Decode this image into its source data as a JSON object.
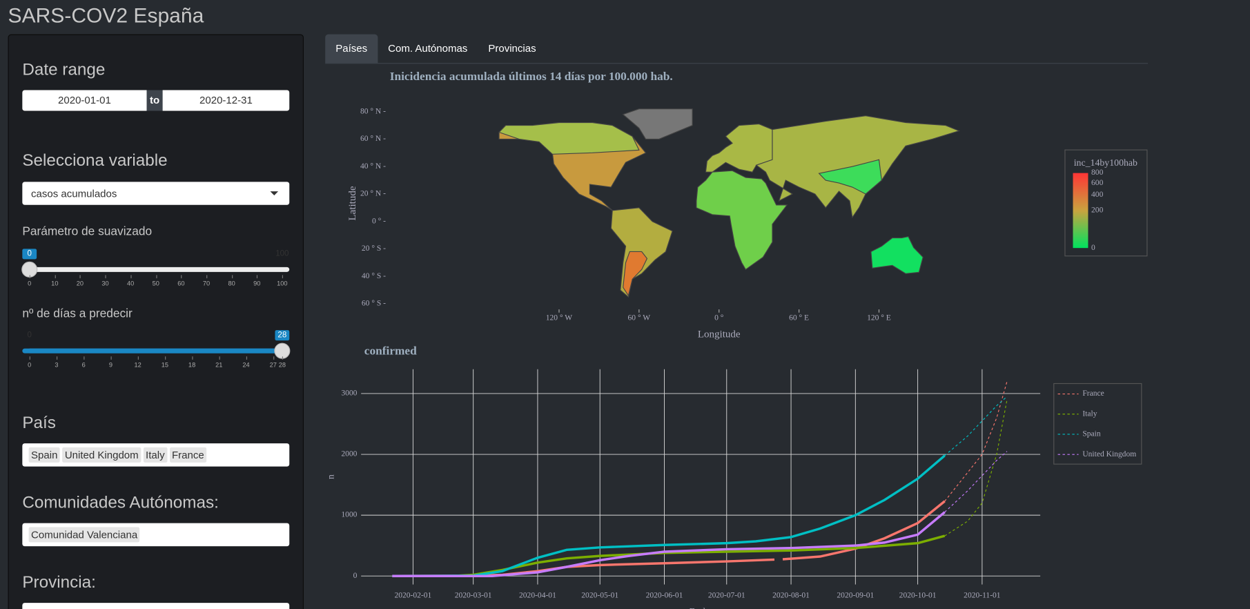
{
  "header": {
    "title": "SARS-COV2 España"
  },
  "sidebar": {
    "date_range": {
      "label": "Date range",
      "start": "2020-01-01",
      "separator": "to",
      "end": "2020-12-31"
    },
    "variable": {
      "label": "Selecciona variable",
      "value": "casos acumulados"
    },
    "smoothing": {
      "label": "Parámetro de suavizado",
      "min": 0,
      "max": 100,
      "value": 0,
      "ticks": [
        0,
        10,
        20,
        30,
        40,
        50,
        60,
        70,
        80,
        90,
        100
      ]
    },
    "predict": {
      "label": "nº de días a predecir",
      "min": 0,
      "max": 28,
      "value": 28,
      "ticks": [
        0,
        3,
        6,
        9,
        12,
        15,
        18,
        21,
        24,
        27,
        28
      ]
    },
    "country": {
      "label": "País",
      "tags": [
        "Spain",
        "United Kingdom",
        "Italy",
        "France"
      ]
    },
    "region": {
      "label": "Comunidades Autónomas:",
      "tags": [
        "Comunidad Valenciana"
      ]
    },
    "province": {
      "label": "Provincia:"
    }
  },
  "tabs": {
    "items": [
      "Países",
      "Com. Autónomas",
      "Provincias"
    ],
    "active": 0
  },
  "chart_data": [
    {
      "type": "choropleth",
      "title": "Inicidencia acumulada últimos 14 días por 100.000 hab.",
      "x_label": "Longitude",
      "y_label": "Latitude",
      "xlim": [
        -180,
        180
      ],
      "ylim": [
        -60,
        85
      ],
      "xticks": [
        {
          "value": -120,
          "label": "120 ° W"
        },
        {
          "value": -60,
          "label": "60 ° W"
        },
        {
          "value": 0,
          "label": "0 °"
        },
        {
          "value": 60,
          "label": "60 ° E"
        },
        {
          "value": 120,
          "label": "120 ° E"
        }
      ],
      "yticks": [
        {
          "value": 80,
          "label": "80 ° N -"
        },
        {
          "value": 60,
          "label": "60 ° N -"
        },
        {
          "value": 40,
          "label": "40 ° N -"
        },
        {
          "value": 20,
          "label": "20 ° N -"
        },
        {
          "value": 0,
          "label": "0 ° -"
        },
        {
          "value": -20,
          "label": "20 ° S -"
        },
        {
          "value": -40,
          "label": "40 ° S -"
        },
        {
          "value": -60,
          "label": "60 ° S -"
        }
      ],
      "colorbar": {
        "title": "inc_14by100hab",
        "lim": [
          0,
          800
        ],
        "scale": "sqrt",
        "ticks": [
          0,
          200,
          400,
          600,
          800
        ],
        "colors": [
          "#00e25e",
          "#c9a33f",
          "#ff3535"
        ]
      }
    },
    {
      "type": "line",
      "title": "confirmed",
      "x_label": "Fecha",
      "y_label": "n",
      "xlim": [
        "2020-01-07",
        "2020-11-29"
      ],
      "ylim": [
        -140,
        3400
      ],
      "xticks": [
        "2020-02-01",
        "2020-03-01",
        "2020-04-01",
        "2020-05-01",
        "2020-06-01",
        "2020-07-01",
        "2020-08-01",
        "2020-09-01",
        "2020-10-01",
        "2020-11-01"
      ],
      "yticks": [
        0,
        1000,
        2000,
        3000
      ],
      "grid": true,
      "series": [
        {
          "name": "France",
          "color": "#f8766d",
          "x": [
            "2020-01-24",
            "2020-03-01",
            "2020-03-15",
            "2020-04-01",
            "2020-04-15",
            "2020-05-01",
            "2020-06-01",
            "2020-07-01",
            "2020-07-24",
            "2020-07-26",
            "2020-07-28",
            "2020-08-15",
            "2020-09-01",
            "2020-09-15",
            "2020-10-01",
            "2020-10-14"
          ],
          "values": [
            0,
            5,
            20,
            80,
            150,
            180,
            210,
            240,
            270,
            null,
            275,
            320,
            450,
            620,
            870,
            1230
          ],
          "forecast_x": [
            "2020-10-14",
            "2020-10-25",
            "2020-11-01",
            "2020-11-08",
            "2020-11-13"
          ],
          "forecast_values": [
            1230,
            1700,
            2000,
            2600,
            3200
          ]
        },
        {
          "name": "Italy",
          "color": "#7cae00",
          "x": [
            "2020-01-22",
            "2020-02-20",
            "2020-03-01",
            "2020-03-15",
            "2020-04-01",
            "2020-04-15",
            "2020-05-01",
            "2020-06-01",
            "2020-07-01",
            "2020-08-01",
            "2020-09-01",
            "2020-10-01",
            "2020-10-14"
          ],
          "values": [
            0,
            0,
            20,
            100,
            220,
            290,
            330,
            380,
            400,
            420,
            460,
            540,
            660
          ],
          "forecast_x": [
            "2020-10-14",
            "2020-10-25",
            "2020-11-01",
            "2020-11-08",
            "2020-11-13"
          ],
          "forecast_values": [
            660,
            900,
            1200,
            2000,
            2900
          ]
        },
        {
          "name": "Spain",
          "color": "#00bfc4",
          "x": [
            "2020-01-22",
            "2020-03-01",
            "2020-03-15",
            "2020-04-01",
            "2020-04-15",
            "2020-05-01",
            "2020-06-01",
            "2020-07-01",
            "2020-07-15",
            "2020-08-01",
            "2020-08-15",
            "2020-09-01",
            "2020-09-15",
            "2020-10-01",
            "2020-10-14"
          ],
          "values": [
            0,
            5,
            80,
            300,
            430,
            470,
            510,
            540,
            570,
            640,
            780,
            1000,
            1250,
            1600,
            1980
          ],
          "forecast_x": [
            "2020-10-14",
            "2020-10-25",
            "2020-11-01",
            "2020-11-08",
            "2020-11-13"
          ],
          "forecast_values": [
            1980,
            2300,
            2550,
            2800,
            2950
          ]
        },
        {
          "name": "United Kingdom",
          "color": "#c77cff",
          "x": [
            "2020-01-22",
            "2020-03-10",
            "2020-04-01",
            "2020-04-15",
            "2020-05-01",
            "2020-05-15",
            "2020-06-01",
            "2020-07-01",
            "2020-08-01",
            "2020-09-01",
            "2020-09-15",
            "2020-10-01",
            "2020-10-14"
          ],
          "values": [
            0,
            0,
            60,
            150,
            260,
            330,
            400,
            440,
            460,
            500,
            550,
            680,
            1050
          ],
          "forecast_x": [
            "2020-10-14",
            "2020-10-25",
            "2020-11-01",
            "2020-11-08",
            "2020-11-13"
          ],
          "forecast_values": [
            1050,
            1400,
            1650,
            1900,
            2050
          ]
        }
      ]
    }
  ]
}
